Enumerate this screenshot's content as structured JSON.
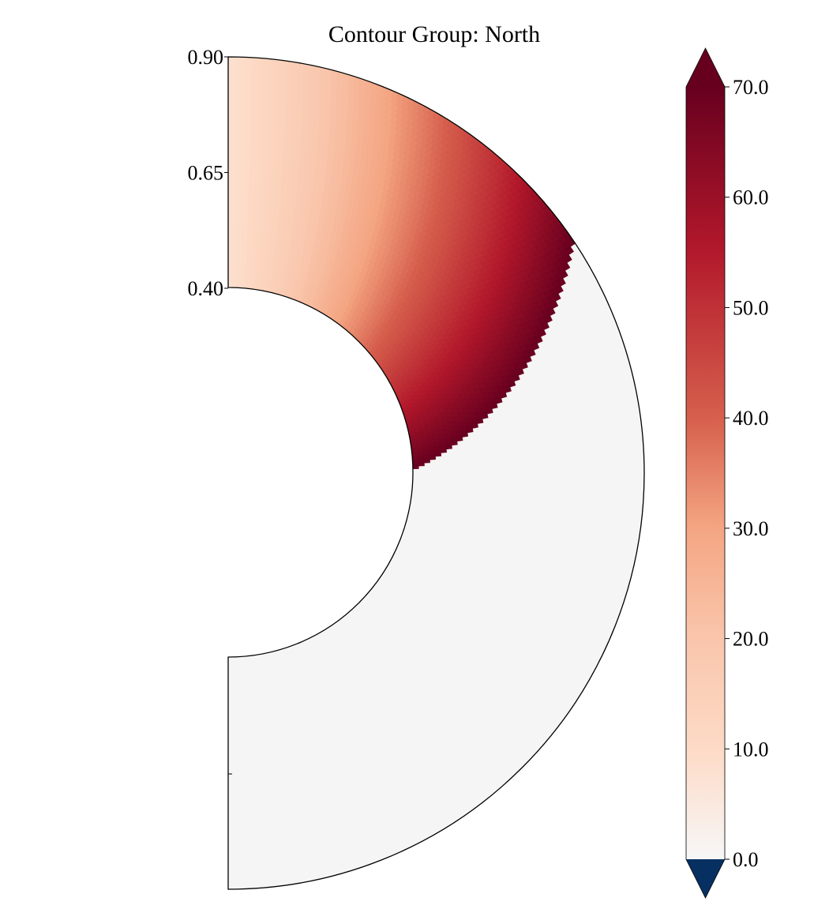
{
  "chart_data": {
    "type": "heatmap",
    "projection": "meridional half-annulus",
    "title": "Contour Group: North",
    "radial_axis": {
      "range": [
        0.4,
        0.9
      ],
      "tick_labels": [
        "0.90",
        "0.65",
        "0.40"
      ]
    },
    "field": {
      "description_values": {
        "filled_region": "northern segment of the shell",
        "value_at_outer_wall": 8,
        "value_at_front": 70,
        "value_elsewhere": 0
      },
      "front_polar_angle_deg_at_outer_radius": 56,
      "front_polar_angle_deg_at_inner_radius": 89
    },
    "colorbar": {
      "vmin": 0.0,
      "vmax": 70.0,
      "tick_labels": [
        "70.0",
        "60.0",
        "50.0",
        "40.0",
        "30.0",
        "20.0",
        "10.0",
        "0.0"
      ],
      "tick_values": [
        70,
        60,
        50,
        40,
        30,
        20,
        10,
        0
      ],
      "extend": "both",
      "under_color": "#053061",
      "over_color": "#67001f",
      "colormap_stops": [
        "#f7f7f7",
        "#fddbc7",
        "#f4a582",
        "#d6604d",
        "#b2182b",
        "#67001f"
      ]
    }
  }
}
